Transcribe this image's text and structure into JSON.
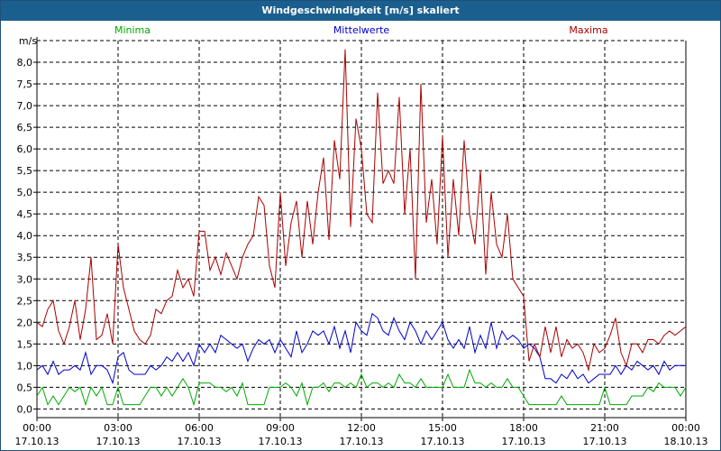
{
  "window": {
    "title": "Windgeschwindigkeit [m/s] skaliert"
  },
  "chart_data": {
    "type": "line",
    "title": "Windgeschwindigkeit [m/s] skaliert",
    "ylabel": "m/s",
    "xlabel": "",
    "ylim": [
      -0.2,
      8.5
    ],
    "xlim": [
      0,
      24
    ],
    "grid": true,
    "legend_placement": "top",
    "y_ticks": [
      "0,0",
      "0,5",
      "1,0",
      "1,5",
      "2,0",
      "2,5",
      "3,0",
      "3,5",
      "4,0",
      "4,5",
      "5,0",
      "5,5",
      "6,0",
      "6,5",
      "7,0",
      "7,5",
      "8,0"
    ],
    "x_ticks": [
      {
        "time": "00:00",
        "date": "17.10.13"
      },
      {
        "time": "03:00",
        "date": "17.10.13"
      },
      {
        "time": "06:00",
        "date": "17.10.13"
      },
      {
        "time": "09:00",
        "date": "17.10.13"
      },
      {
        "time": "12:00",
        "date": "17.10.13"
      },
      {
        "time": "15:00",
        "date": "17.10.13"
      },
      {
        "time": "18:00",
        "date": "17.10.13"
      },
      {
        "time": "21:00",
        "date": "17.10.13"
      },
      {
        "time": "00:00",
        "date": "18.10.13"
      }
    ],
    "series": [
      {
        "name": "Minima",
        "color": "#00aa00",
        "x": [
          0,
          0.2,
          0.4,
          0.6,
          0.8,
          1,
          1.2,
          1.4,
          1.6,
          1.8,
          2,
          2.2,
          2.4,
          2.6,
          2.8,
          3,
          3.2,
          3.4,
          3.6,
          3.8,
          4,
          4.2,
          4.4,
          4.6,
          4.8,
          5,
          5.2,
          5.4,
          5.6,
          5.8,
          6,
          6.2,
          6.4,
          6.6,
          6.8,
          7,
          7.2,
          7.4,
          7.6,
          7.8,
          8,
          8.2,
          8.4,
          8.6,
          8.8,
          9,
          9.2,
          9.4,
          9.6,
          9.8,
          10,
          10.2,
          10.4,
          10.6,
          10.8,
          11,
          11.2,
          11.4,
          11.6,
          11.8,
          12,
          12.2,
          12.4,
          12.6,
          12.8,
          13,
          13.2,
          13.4,
          13.6,
          13.8,
          14,
          14.2,
          14.4,
          14.6,
          14.8,
          15,
          15.2,
          15.4,
          15.6,
          15.8,
          16,
          16.2,
          16.4,
          16.6,
          16.8,
          17,
          17.2,
          17.4,
          17.6,
          17.8,
          18,
          18.2,
          18.4,
          18.6,
          18.8,
          19,
          19.2,
          19.4,
          19.6,
          19.8,
          20,
          20.2,
          20.4,
          20.6,
          20.8,
          21,
          21.2,
          21.4,
          21.6,
          21.8,
          22,
          22.2,
          22.4,
          22.6,
          22.8,
          23,
          23.2,
          23.4,
          23.6,
          23.8,
          24
        ],
        "values": [
          0.3,
          0.5,
          0.1,
          0.3,
          0.1,
          0.3,
          0.5,
          0.4,
          0.5,
          0.1,
          0.5,
          0.3,
          0.5,
          0.1,
          0.1,
          0.5,
          0.1,
          0.1,
          0.1,
          0.1,
          0.3,
          0.5,
          0.5,
          0.3,
          0.5,
          0.3,
          0.5,
          0.7,
          0.5,
          0.1,
          0.6,
          0.6,
          0.6,
          0.5,
          0.5,
          0.4,
          0.5,
          0.3,
          0.6,
          0.1,
          0.1,
          0.1,
          0.1,
          0.5,
          0.5,
          0.5,
          0.6,
          0.5,
          0.3,
          0.6,
          0.1,
          0.5,
          0.5,
          0.6,
          0.4,
          0.6,
          0.6,
          0.5,
          0.6,
          0.5,
          0.8,
          0.5,
          0.6,
          0.6,
          0.5,
          0.6,
          0.5,
          0.8,
          0.6,
          0.6,
          0.5,
          0.7,
          0.5,
          0.5,
          0.5,
          0.5,
          0.8,
          0.5,
          0.5,
          0.5,
          0.9,
          0.6,
          0.6,
          0.5,
          0.6,
          0.5,
          0.5,
          0.7,
          0.5,
          0.5,
          0.3,
          0.1,
          0.1,
          0.1,
          0.1,
          0.1,
          0.1,
          0.3,
          0.1,
          0.1,
          0.1,
          0.1,
          0.1,
          0.1,
          0.1,
          0.5,
          0.1,
          0.1,
          0.1,
          0.1,
          0.3,
          0.3,
          0.3,
          0.5,
          0.4,
          0.6,
          0.5,
          0.5,
          0.5,
          0.3,
          0.5
        ]
      },
      {
        "name": "Mittelwerte",
        "color": "#0000cc",
        "x": [
          0,
          0.2,
          0.4,
          0.6,
          0.8,
          1,
          1.2,
          1.4,
          1.6,
          1.8,
          2,
          2.2,
          2.4,
          2.6,
          2.8,
          3,
          3.2,
          3.4,
          3.6,
          3.8,
          4,
          4.2,
          4.4,
          4.6,
          4.8,
          5,
          5.2,
          5.4,
          5.6,
          5.8,
          6,
          6.2,
          6.4,
          6.6,
          6.8,
          7,
          7.2,
          7.4,
          7.6,
          7.8,
          8,
          8.2,
          8.4,
          8.6,
          8.8,
          9,
          9.2,
          9.4,
          9.6,
          9.8,
          10,
          10.2,
          10.4,
          10.6,
          10.8,
          11,
          11.2,
          11.4,
          11.6,
          11.8,
          12,
          12.2,
          12.4,
          12.6,
          12.8,
          13,
          13.2,
          13.4,
          13.6,
          13.8,
          14,
          14.2,
          14.4,
          14.6,
          14.8,
          15,
          15.2,
          15.4,
          15.6,
          15.8,
          16,
          16.2,
          16.4,
          16.6,
          16.8,
          17,
          17.2,
          17.4,
          17.6,
          17.8,
          18,
          18.2,
          18.4,
          18.6,
          18.8,
          19,
          19.2,
          19.4,
          19.6,
          19.8,
          20,
          20.2,
          20.4,
          20.6,
          20.8,
          21,
          21.2,
          21.4,
          21.6,
          21.8,
          22,
          22.2,
          22.4,
          22.6,
          22.8,
          23,
          23.2,
          23.4,
          23.6,
          23.8,
          24
        ],
        "values": [
          0.9,
          1.0,
          0.8,
          1.1,
          0.8,
          0.9,
          0.9,
          1.0,
          0.9,
          1.3,
          0.8,
          1.0,
          1.0,
          0.9,
          0.6,
          1.2,
          1.3,
          0.9,
          0.8,
          0.8,
          0.8,
          1.0,
          0.9,
          1.0,
          1.2,
          1.1,
          1.3,
          1.1,
          1.3,
          1.0,
          1.5,
          1.3,
          1.5,
          1.3,
          1.7,
          1.6,
          1.5,
          1.4,
          1.5,
          1.1,
          1.4,
          1.6,
          1.5,
          1.6,
          1.3,
          1.6,
          1.4,
          1.2,
          1.8,
          1.3,
          1.5,
          1.8,
          1.7,
          1.8,
          1.5,
          1.9,
          1.4,
          1.8,
          1.3,
          2.0,
          1.8,
          1.7,
          2.2,
          2.1,
          1.8,
          1.7,
          2.1,
          1.8,
          1.6,
          2.0,
          1.8,
          1.5,
          1.8,
          1.6,
          1.8,
          2.0,
          1.6,
          1.4,
          1.6,
          1.4,
          1.9,
          1.3,
          1.7,
          1.4,
          2.0,
          1.4,
          1.8,
          1.6,
          1.7,
          1.6,
          1.4,
          1.5,
          1.4,
          1.2,
          0.7,
          0.7,
          0.6,
          0.8,
          0.7,
          0.9,
          0.7,
          0.8,
          0.6,
          0.7,
          0.8,
          0.8,
          0.8,
          1.0,
          0.8,
          1.0,
          0.9,
          1.1,
          1.0,
          0.9,
          1.0,
          0.8,
          1.1,
          0.9,
          1.0,
          1.0,
          1.0
        ]
      },
      {
        "name": "Maxima",
        "color": "#aa0000",
        "x": [
          0,
          0.2,
          0.4,
          0.6,
          0.8,
          1,
          1.2,
          1.4,
          1.6,
          1.8,
          2,
          2.2,
          2.4,
          2.6,
          2.8,
          3,
          3.2,
          3.4,
          3.6,
          3.8,
          4,
          4.2,
          4.4,
          4.6,
          4.8,
          5,
          5.2,
          5.4,
          5.6,
          5.8,
          6,
          6.2,
          6.4,
          6.6,
          6.8,
          7,
          7.2,
          7.4,
          7.6,
          7.8,
          8,
          8.2,
          8.4,
          8.6,
          8.8,
          9,
          9.2,
          9.4,
          9.6,
          9.8,
          10,
          10.2,
          10.4,
          10.6,
          10.8,
          11,
          11.2,
          11.4,
          11.6,
          11.8,
          12,
          12.2,
          12.4,
          12.6,
          12.8,
          13,
          13.2,
          13.4,
          13.6,
          13.8,
          14,
          14.2,
          14.4,
          14.6,
          14.8,
          15,
          15.2,
          15.4,
          15.6,
          15.8,
          16,
          16.2,
          16.4,
          16.6,
          16.8,
          17,
          17.2,
          17.4,
          17.6,
          17.8,
          18,
          18.2,
          18.4,
          18.6,
          18.8,
          19,
          19.2,
          19.4,
          19.6,
          19.8,
          20,
          20.2,
          20.4,
          20.6,
          20.8,
          21,
          21.2,
          21.4,
          21.6,
          21.8,
          22,
          22.2,
          22.4,
          22.6,
          22.8,
          23,
          23.2,
          23.4,
          23.6,
          23.8,
          24
        ],
        "values": [
          2.0,
          1.9,
          2.3,
          2.5,
          1.8,
          1.5,
          1.9,
          2.5,
          1.6,
          2.3,
          3.5,
          1.6,
          1.7,
          2.2,
          1.5,
          3.8,
          2.8,
          2.3,
          1.8,
          1.6,
          1.5,
          1.7,
          2.3,
          2.2,
          2.5,
          2.6,
          3.2,
          2.8,
          3.0,
          2.6,
          4.1,
          4.1,
          3.2,
          3.5,
          3.1,
          3.6,
          3.3,
          3.0,
          3.5,
          3.8,
          4.0,
          4.9,
          4.7,
          3.3,
          2.8,
          5.0,
          3.3,
          4.3,
          4.8,
          3.5,
          4.8,
          3.8,
          5.0,
          5.8,
          3.9,
          6.2,
          5.3,
          8.3,
          4.2,
          6.7,
          6.0,
          4.5,
          4.3,
          7.3,
          5.2,
          5.5,
          5.2,
          7.2,
          4.5,
          6.0,
          3.0,
          7.5,
          4.3,
          5.3,
          3.8,
          6.3,
          3.5,
          5.3,
          4.0,
          6.2,
          4.5,
          3.8,
          5.5,
          3.1,
          5.0,
          3.8,
          3.5,
          4.5,
          3.0,
          2.8,
          2.6,
          1.1,
          1.5,
          1.2,
          1.9,
          1.3,
          1.9,
          1.2,
          1.6,
          1.4,
          1.5,
          1.3,
          0.9,
          1.5,
          1.3,
          1.4,
          1.7,
          2.1,
          1.3,
          1.0,
          1.5,
          1.5,
          1.3,
          1.6,
          1.6,
          1.5,
          1.7,
          1.8,
          1.7,
          1.8,
          1.9
        ]
      }
    ]
  }
}
